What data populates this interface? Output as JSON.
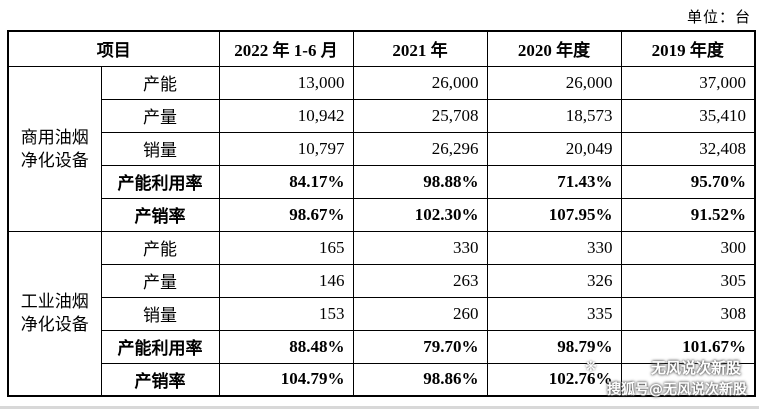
{
  "unit_label": "单位：台",
  "table": {
    "headers": [
      "项目",
      "2022 年 1-6 月",
      "2021 年",
      "2020 年度",
      "2019 年度"
    ],
    "groups": [
      {
        "category": "商用油烟净化设备",
        "rows": [
          {
            "metric": "产能",
            "bold": false,
            "values": [
              "13,000",
              "26,000",
              "26,000",
              "37,000"
            ]
          },
          {
            "metric": "产量",
            "bold": false,
            "values": [
              "10,942",
              "25,708",
              "18,573",
              "35,410"
            ]
          },
          {
            "metric": "销量",
            "bold": false,
            "values": [
              "10,797",
              "26,296",
              "20,049",
              "32,408"
            ]
          },
          {
            "metric": "产能利用率",
            "bold": true,
            "values": [
              "84.17%",
              "98.88%",
              "71.43%",
              "95.70%"
            ]
          },
          {
            "metric": "产销率",
            "bold": true,
            "values": [
              "98.67%",
              "102.30%",
              "107.95%",
              "91.52%"
            ]
          }
        ]
      },
      {
        "category": "工业油烟净化设备",
        "rows": [
          {
            "metric": "产能",
            "bold": false,
            "values": [
              "165",
              "330",
              "330",
              "300"
            ]
          },
          {
            "metric": "产量",
            "bold": false,
            "values": [
              "146",
              "263",
              "326",
              "305"
            ]
          },
          {
            "metric": "销量",
            "bold": false,
            "values": [
              "153",
              "260",
              "335",
              "308"
            ]
          },
          {
            "metric": "产能利用率",
            "bold": true,
            "values": [
              "88.48%",
              "79.70%",
              "98.79%",
              "101.67%"
            ]
          },
          {
            "metric": "产销率",
            "bold": true,
            "values": [
              "104.79%",
              "98.86%",
              "102.76%",
              ""
            ]
          }
        ]
      }
    ]
  },
  "watermark": {
    "line1": "无风说次新股",
    "line2": "搜狐号@无风说次新股",
    "icon": "leaf-icon"
  }
}
